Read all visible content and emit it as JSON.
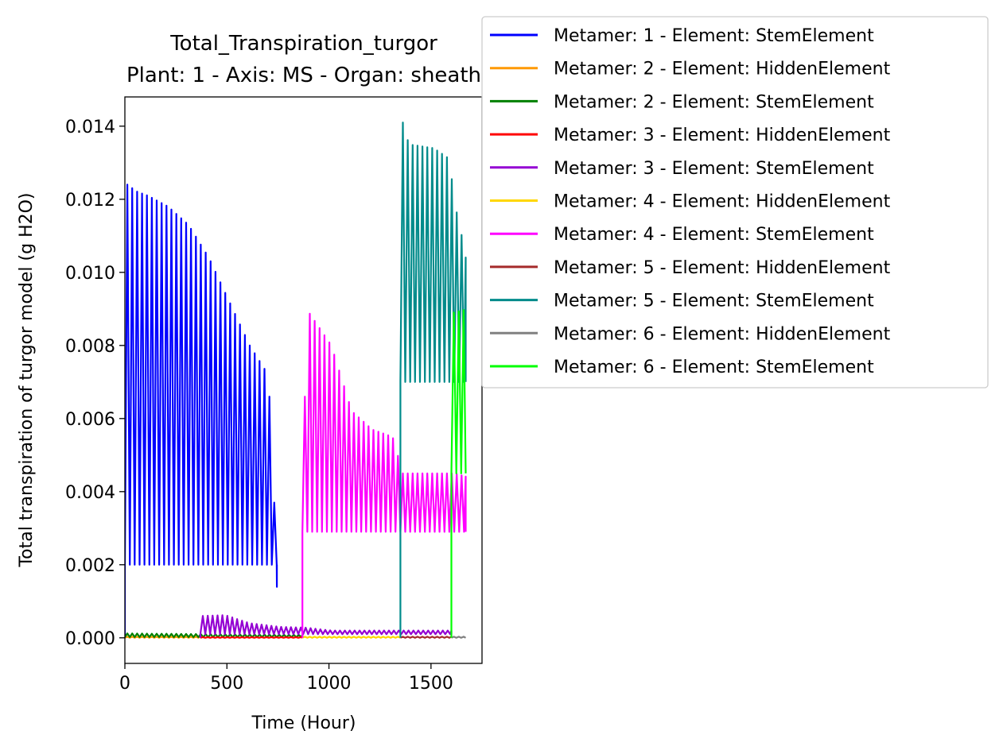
{
  "chart_data": {
    "type": "line",
    "title": "Total_Transpiration_turgor",
    "subtitle": "Plant: 1 - Axis: MS - Organ: sheath",
    "xlabel": "Time (Hour)",
    "ylabel": "Total transpiration of turgor model (g H2O)",
    "xlim": [
      0,
      1750
    ],
    "ylim": [
      -0.0007,
      0.0148
    ],
    "xticks": [
      "0",
      "500",
      "1000",
      "1500"
    ],
    "xtick_values": [
      0,
      500,
      1000,
      1500
    ],
    "yticks": [
      "0.000",
      "0.002",
      "0.004",
      "0.006",
      "0.008",
      "0.010",
      "0.012",
      "0.014"
    ],
    "ytick_values": [
      0,
      0.002,
      0.004,
      0.006,
      0.008,
      0.01,
      0.012,
      0.014
    ],
    "grid": false,
    "legend_position": "right-top",
    "series": [
      {
        "name": "Metamer: 1 - Element: StemElement",
        "color": "#0000ff",
        "start": 0,
        "end": 745,
        "base": 0.002,
        "peaks": [
          [
            0,
            0.0124
          ],
          [
            50,
            0.0122
          ],
          [
            100,
            0.0121
          ],
          [
            200,
            0.0118
          ],
          [
            300,
            0.0113
          ],
          [
            400,
            0.0104
          ],
          [
            500,
            0.0092
          ],
          [
            600,
            0.008
          ],
          [
            690,
            0.0072
          ],
          [
            700,
            0.0062
          ],
          [
            720,
            0.0037
          ],
          [
            745,
            0.0013
          ]
        ]
      },
      {
        "name": "Metamer: 2 - Element: HiddenElement",
        "color": "#ff9900",
        "start": 0,
        "end": 370,
        "base": 0.0,
        "peaks": [
          [
            0,
            3e-05
          ],
          [
            370,
            3e-05
          ]
        ]
      },
      {
        "name": "Metamer: 2 - Element: StemElement",
        "color": "#008000",
        "start": 0,
        "end": 870,
        "base": 2e-05,
        "peaks": [
          [
            0,
            0.00012
          ],
          [
            400,
            0.0001
          ],
          [
            870,
            8e-05
          ]
        ]
      },
      {
        "name": "Metamer: 3 - Element: HiddenElement",
        "color": "#ff0000",
        "start": 370,
        "end": 870,
        "base": 0.0,
        "peaks": [
          [
            370,
            2e-05
          ],
          [
            870,
            2e-05
          ]
        ]
      },
      {
        "name": "Metamer: 3 - Element: StemElement",
        "color": "#9400d3",
        "start": 370,
        "end": 1600,
        "base": 0.0001,
        "peaks": [
          [
            370,
            0.0006
          ],
          [
            480,
            0.00062
          ],
          [
            600,
            0.0004
          ],
          [
            750,
            0.0003
          ],
          [
            870,
            0.00028
          ],
          [
            1000,
            0.0002
          ],
          [
            1600,
            0.0002
          ]
        ]
      },
      {
        "name": "Metamer: 4 - Element: HiddenElement",
        "color": "#ffd700",
        "start": 870,
        "end": 1350,
        "base": 0.0,
        "peaks": [
          [
            870,
            3e-05
          ],
          [
            1350,
            3e-05
          ]
        ]
      },
      {
        "name": "Metamer: 4 - Element: StemElement",
        "color": "#ff00ff",
        "start": 870,
        "end": 1670,
        "base": 0.0029,
        "peaks": [
          [
            870,
            0.0066
          ],
          [
            890,
            0.0089
          ],
          [
            1000,
            0.008
          ],
          [
            1100,
            0.0062
          ],
          [
            1200,
            0.0057
          ],
          [
            1300,
            0.0055
          ],
          [
            1350,
            0.0045
          ],
          [
            1600,
            0.0045
          ],
          [
            1670,
            0.0044
          ]
        ]
      },
      {
        "name": "Metamer: 5 - Element: HiddenElement",
        "color": "#a52a2a",
        "start": 1350,
        "end": 1600,
        "base": 0.0,
        "peaks": [
          [
            1350,
            3e-05
          ],
          [
            1600,
            3e-05
          ]
        ]
      },
      {
        "name": "Metamer: 5 - Element: StemElement",
        "color": "#008b8b",
        "start": 1350,
        "end": 1670,
        "base": 0.007,
        "peaks": [
          [
            1350,
            0.0141
          ],
          [
            1380,
            0.0135
          ],
          [
            1500,
            0.0134
          ],
          [
            1580,
            0.0131
          ],
          [
            1600,
            0.012
          ],
          [
            1670,
            0.0102
          ]
        ]
      },
      {
        "name": "Metamer: 6 - Element: HiddenElement",
        "color": "#808080",
        "start": 1600,
        "end": 1670,
        "base": 0.0,
        "peaks": [
          [
            1600,
            3e-05
          ],
          [
            1670,
            3e-05
          ]
        ]
      },
      {
        "name": "Metamer: 6 - Element: StemElement",
        "color": "#00ff00",
        "start": 1600,
        "end": 1670,
        "base": 0.0045,
        "peaks": [
          [
            1600,
            0.0089
          ],
          [
            1670,
            0.009
          ]
        ]
      }
    ]
  }
}
